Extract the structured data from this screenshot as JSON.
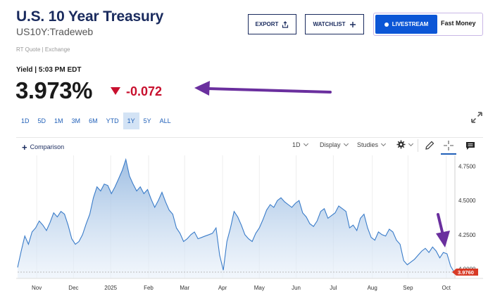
{
  "header": {
    "title": "U.S. 10 Year Treasury",
    "symbol": "US10Y:Tradeweb",
    "quote_source": "RT Quote | Exchange",
    "export_label": "EXPORT",
    "watchlist_label": "WATCHLIST",
    "livestream_label": "LIVESTREAM",
    "fastmoney_label": "Fast Money"
  },
  "quote": {
    "yield_time": "Yield | 5:03 PM EDT",
    "price": "3.973%",
    "change": "-0.072",
    "change_color": "#c8102e"
  },
  "ranges": [
    {
      "label": "1D",
      "active": false
    },
    {
      "label": "5D",
      "active": false
    },
    {
      "label": "1M",
      "active": false
    },
    {
      "label": "3M",
      "active": false
    },
    {
      "label": "6M",
      "active": false
    },
    {
      "label": "YTD",
      "active": false
    },
    {
      "label": "1Y",
      "active": true
    },
    {
      "label": "5Y",
      "active": false
    },
    {
      "label": "ALL",
      "active": false
    }
  ],
  "toolbar": {
    "comparison_label": "Comparison",
    "interval_label": "1D",
    "display_label": "Display",
    "studies_label": "Studies",
    "icons": [
      "gear-icon",
      "pencil-icon",
      "crosshair-icon",
      "comment-icon"
    ]
  },
  "annotations": {
    "arrow_color": "#6a2f9e"
  },
  "chart_data": {
    "type": "area",
    "title": "",
    "xlabel": "",
    "ylabel": "",
    "ylim": [
      3.93,
      4.83
    ],
    "y_ticks": [
      "4.7500",
      "4.5000",
      "4.2500",
      "4.0000"
    ],
    "y_tick_values": [
      4.75,
      4.5,
      4.25,
      4.0
    ],
    "x_ticks": [
      "Nov",
      "Dec",
      "2025",
      "Feb",
      "Mar",
      "Apr",
      "May",
      "Jun",
      "Jul",
      "Aug",
      "Sep",
      "Oct"
    ],
    "x_tick_index": [
      5.3,
      15.5,
      25.8,
      36.3,
      46.3,
      56.8,
      67,
      77.2,
      87.5,
      98.3,
      108.2,
      118.8
    ],
    "last_value_label": "3.9760",
    "last_value": 3.976,
    "color": "#3a7cc9",
    "series": [
      {
        "values": [
          4.01,
          4.13,
          4.24,
          4.18,
          4.27,
          4.3,
          4.35,
          4.32,
          4.28,
          4.34,
          4.41,
          4.38,
          4.42,
          4.4,
          4.32,
          4.22,
          4.18,
          4.2,
          4.25,
          4.33,
          4.4,
          4.52,
          4.6,
          4.57,
          4.62,
          4.61,
          4.55,
          4.6,
          4.66,
          4.72,
          4.8,
          4.68,
          4.62,
          4.57,
          4.6,
          4.55,
          4.58,
          4.51,
          4.45,
          4.5,
          4.56,
          4.49,
          4.43,
          4.4,
          4.3,
          4.26,
          4.2,
          4.22,
          4.25,
          4.27,
          4.22,
          4.23,
          4.24,
          4.25,
          4.26,
          4.3,
          4.1,
          3.99,
          4.2,
          4.3,
          4.42,
          4.38,
          4.32,
          4.25,
          4.22,
          4.2,
          4.26,
          4.3,
          4.36,
          4.43,
          4.47,
          4.45,
          4.5,
          4.52,
          4.49,
          4.47,
          4.45,
          4.48,
          4.5,
          4.41,
          4.38,
          4.33,
          4.31,
          4.35,
          4.42,
          4.44,
          4.37,
          4.39,
          4.41,
          4.46,
          4.44,
          4.42,
          4.3,
          4.32,
          4.28,
          4.37,
          4.4,
          4.3,
          4.23,
          4.21,
          4.27,
          4.25,
          4.24,
          4.29,
          4.27,
          4.21,
          4.18,
          4.06,
          4.03,
          4.05,
          4.07,
          4.1,
          4.13,
          4.15,
          4.12,
          4.16,
          4.13,
          4.08,
          4.12,
          4.11,
          4.02,
          3.976
        ]
      }
    ]
  }
}
